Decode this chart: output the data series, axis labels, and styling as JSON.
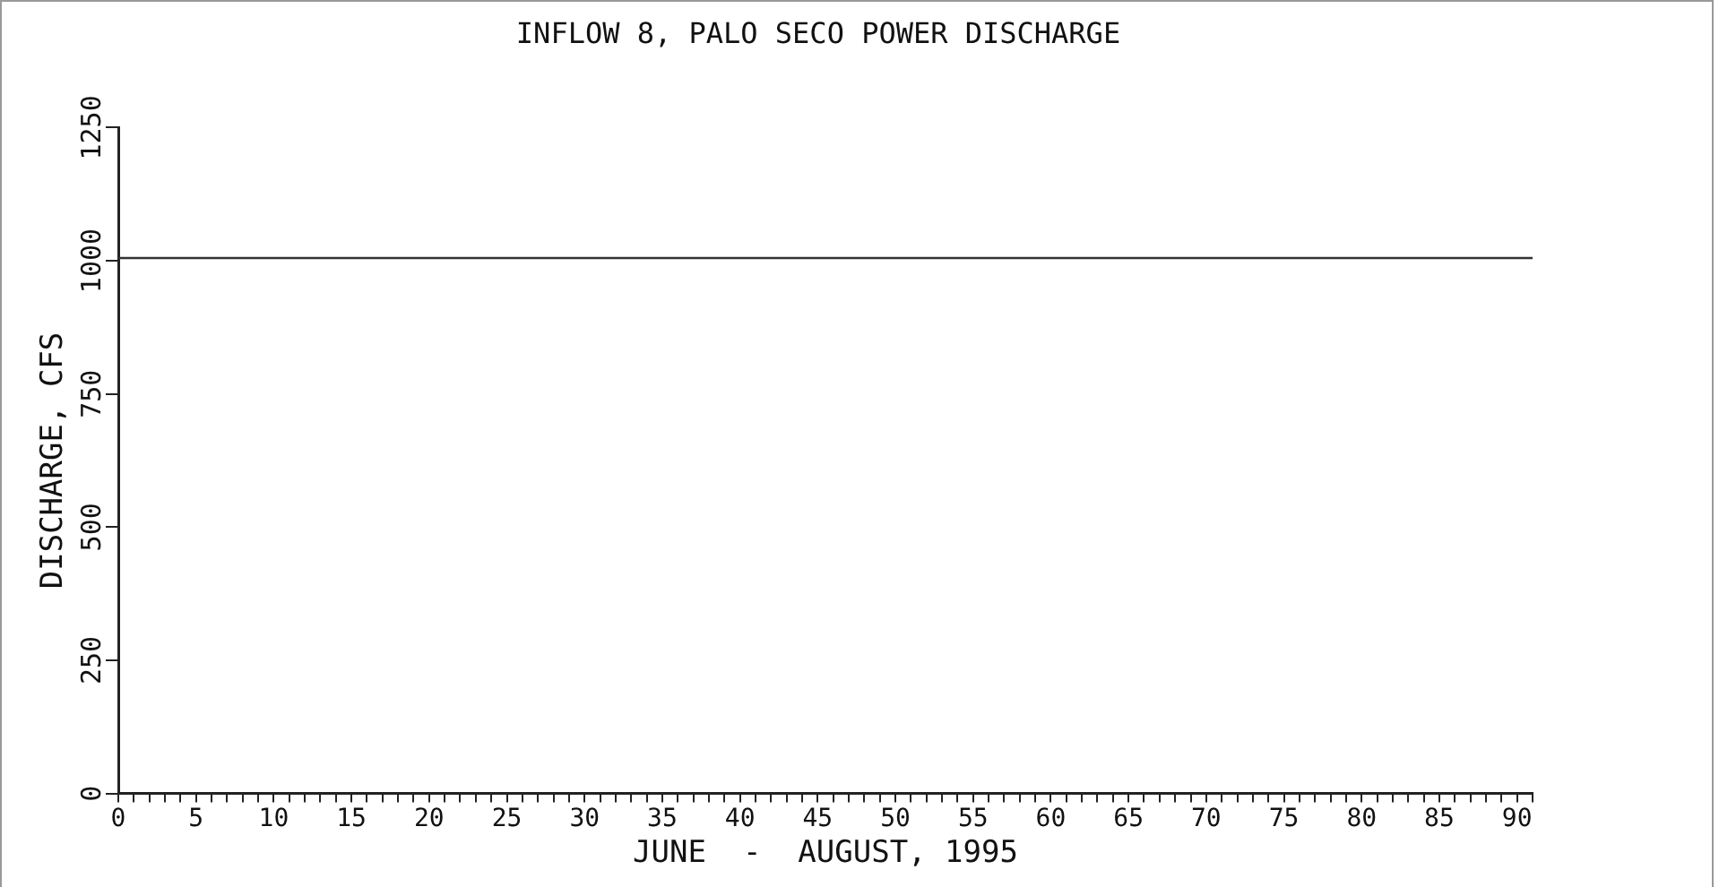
{
  "chart_data": {
    "type": "line",
    "title": "INFLOW 8, PALO SECO POWER DISCHARGE",
    "xlabel": "JUNE  -  AUGUST, 1995",
    "ylabel": "DISCHARGE, CFS",
    "x": [
      0,
      91
    ],
    "series": [
      {
        "color": "#333333",
        "values": [
          1005,
          1005
        ]
      }
    ],
    "xlim": [
      0,
      91
    ],
    "xticks": [
      0,
      {
        "value": 1,
        "label": null
      },
      {
        "value": 2,
        "label": null
      },
      {
        "value": 3,
        "label": null
      },
      {
        "value": 4,
        "label": null
      },
      5,
      {
        "value": 6,
        "label": null
      },
      {
        "value": 7,
        "label": null
      },
      {
        "value": 8,
        "label": null
      },
      {
        "value": 9,
        "label": null
      },
      10,
      {
        "value": 11,
        "label": null
      },
      {
        "value": 12,
        "label": null
      },
      {
        "value": 13,
        "label": null
      },
      {
        "value": 14,
        "label": null
      },
      15,
      {
        "value": 16,
        "label": null
      },
      {
        "value": 17,
        "label": null
      },
      {
        "value": 18,
        "label": null
      },
      {
        "value": 19,
        "label": null
      },
      20,
      {
        "value": 21,
        "label": null
      },
      {
        "value": 22,
        "label": null
      },
      {
        "value": 23,
        "label": null
      },
      {
        "value": 24,
        "label": null
      },
      25,
      {
        "value": 26,
        "label": null
      },
      {
        "value": 27,
        "label": null
      },
      {
        "value": 28,
        "label": null
      },
      {
        "value": 29,
        "label": null
      },
      30,
      {
        "value": 31,
        "label": null
      },
      {
        "value": 32,
        "label": null
      },
      {
        "value": 33,
        "label": null
      },
      {
        "value": 34,
        "label": null
      },
      35,
      {
        "value": 36,
        "label": null
      },
      {
        "value": 37,
        "label": null
      },
      {
        "value": 38,
        "label": null
      },
      {
        "value": 39,
        "label": null
      },
      40,
      {
        "value": 41,
        "label": null
      },
      {
        "value": 42,
        "label": null
      },
      {
        "value": 43,
        "label": null
      },
      {
        "value": 44,
        "label": null
      },
      45,
      {
        "value": 46,
        "label": null
      },
      {
        "value": 47,
        "label": null
      },
      {
        "value": 48,
        "label": null
      },
      {
        "value": 49,
        "label": null
      },
      50,
      {
        "value": 51,
        "label": null
      },
      {
        "value": 52,
        "label": null
      },
      {
        "value": 53,
        "label": null
      },
      {
        "value": 54,
        "label": null
      },
      55,
      {
        "value": 56,
        "label": null
      },
      {
        "value": 57,
        "label": null
      },
      {
        "value": 58,
        "label": null
      },
      {
        "value": 59,
        "label": null
      },
      60,
      {
        "value": 61,
        "label": null
      },
      {
        "value": 62,
        "label": null
      },
      {
        "value": 63,
        "label": null
      },
      {
        "value": 64,
        "label": null
      },
      65,
      {
        "value": 66,
        "label": null
      },
      {
        "value": 67,
        "label": null
      },
      {
        "value": 68,
        "label": null
      },
      {
        "value": 69,
        "label": null
      },
      70,
      {
        "value": 71,
        "label": null
      },
      {
        "value": 72,
        "label": null
      },
      {
        "value": 73,
        "label": null
      },
      {
        "value": 74,
        "label": null
      },
      75,
      {
        "value": 76,
        "label": null
      },
      {
        "value": 77,
        "label": null
      },
      {
        "value": 78,
        "label": null
      },
      {
        "value": 79,
        "label": null
      },
      80,
      {
        "value": 81,
        "label": null
      },
      {
        "value": 82,
        "label": null
      },
      {
        "value": 83,
        "label": null
      },
      {
        "value": 84,
        "label": null
      },
      85,
      {
        "value": 86,
        "label": null
      },
      {
        "value": 87,
        "label": null
      },
      {
        "value": 88,
        "label": null
      },
      {
        "value": 89,
        "label": null
      },
      90,
      {
        "value": 91,
        "label": null
      }
    ],
    "ylim": [
      0,
      1250
    ],
    "yticks": [
      0,
      250,
      500,
      750,
      1000,
      1250
    ],
    "grid": false,
    "legend": false,
    "marker": "none",
    "line_style": "solid"
  }
}
